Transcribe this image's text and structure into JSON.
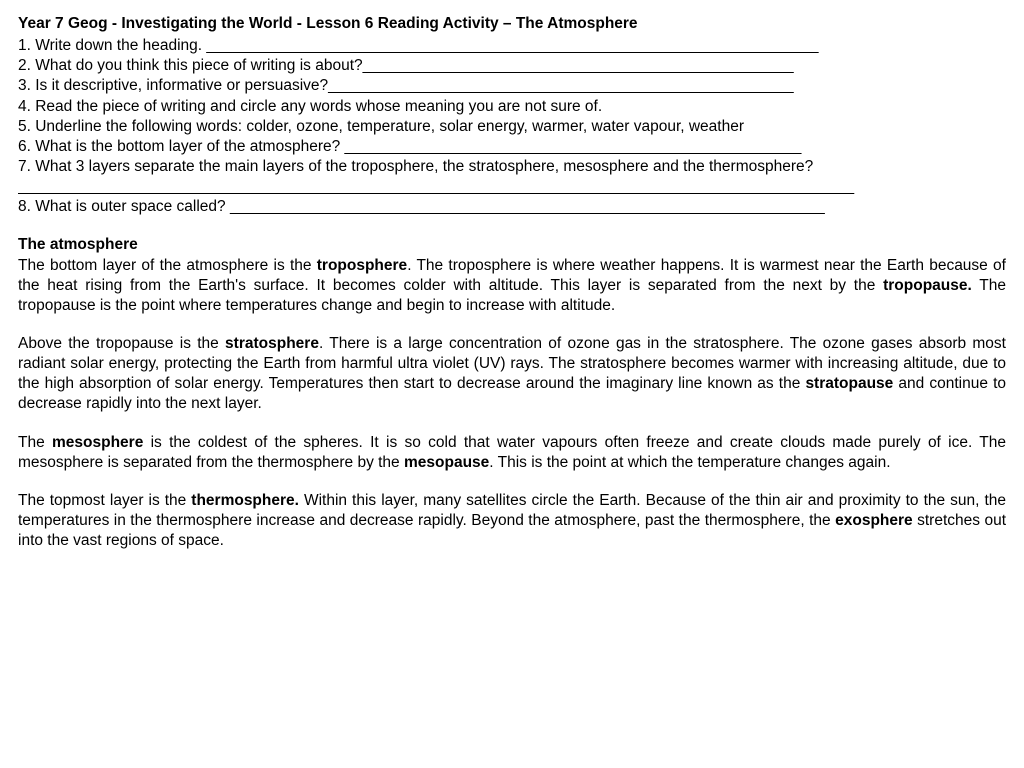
{
  "title": "Year 7 Geog - Investigating the World - Lesson 6 Reading Activity – The Atmosphere",
  "questions": {
    "q1": "1.  Write down the heading. _______________________________________________________________________",
    "q2": "2.  What do you think this piece of writing is about?__________________________________________________",
    "q3": "3.  Is it descriptive, informative or persuasive?______________________________________________________",
    "q4": "4.  Read the piece of writing and circle any words whose meaning you are not sure of.",
    "q5": "5.  Underline the following words: colder,  ozone, temperature, solar energy, warmer, water vapour, weather",
    "q6": "6.  What is the bottom layer of the atmosphere? _____________________________________________________",
    "q7a": "7.  What 3 layers separate the main layers of the troposphere, the stratosphere, mesosphere and the thermosphere?",
    "q7b": "_________________________________________________________________________________________________",
    "q8": "8. What is outer space called? _____________________________________________________________________"
  },
  "body": {
    "heading": "The atmosphere",
    "p1_a": "The bottom layer of the atmosphere is the ",
    "p1_b1": "troposphere",
    "p1_c": ". The troposphere is where weather happens. It is warmest near the Earth because of the heat rising from the Earth's surface. It becomes colder with altitude. This layer is separated from the next by the ",
    "p1_b2": "tropopause.",
    "p1_d": " The tropopause is the point where temperatures change and begin to increase with altitude.",
    "p2_a": "Above the tropopause is the ",
    "p2_b1": "stratosphere",
    "p2_c": ". There is a large concentration of ozone gas in the stratosphere. The ozone gases absorb most radiant solar energy, protecting the Earth from harmful ultra violet (UV) rays. The stratosphere becomes warmer with increasing altitude, due to the high absorption of solar energy. Temperatures then start to decrease around the imaginary line known as the ",
    "p2_b2": "stratopause",
    "p2_d": " and continue to decrease rapidly into the next layer.",
    "p3_a": "The ",
    "p3_b1": "mesosphere",
    "p3_c": " is the coldest of the spheres. It is so cold that water vapours often freeze and create clouds made purely of ice. The mesosphere is separated from the thermosphere by the ",
    "p3_b2": "mesopause",
    "p3_d": ". This is the point at which the temperature changes again.",
    "p4_a": "The topmost layer is the ",
    "p4_b1": "thermosphere.",
    "p4_c": " Within this layer, many satellites circle the Earth. Because of the thin air and proximity to the sun, the temperatures in the thermosphere increase and decrease rapidly. Beyond the atmosphere, past the thermosphere, the ",
    "p4_b2": "exosphere",
    "p4_d": " stretches out into the vast regions of space."
  }
}
